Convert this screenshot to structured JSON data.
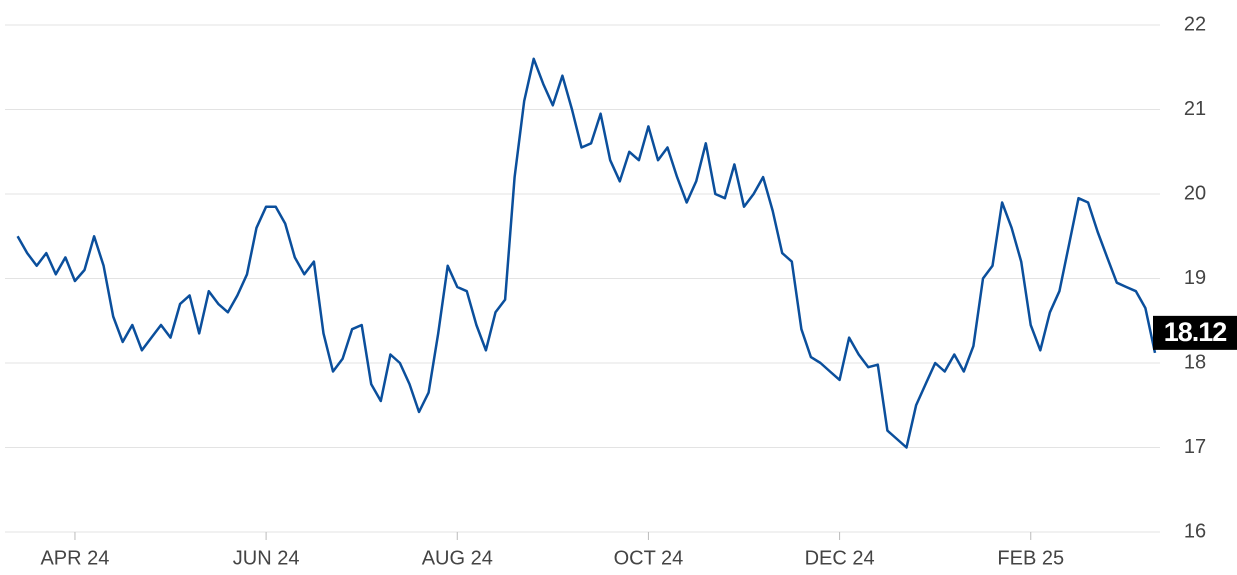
{
  "chart_data": {
    "type": "line",
    "categories": [
      null,
      null,
      null,
      null,
      null,
      null,
      "APR 24",
      null,
      null,
      null,
      null,
      null,
      null,
      null,
      null,
      null,
      null,
      null,
      null,
      null,
      null,
      null,
      null,
      null,
      null,
      null,
      "JUN 24",
      null,
      null,
      null,
      null,
      null,
      null,
      null,
      null,
      null,
      null,
      null,
      null,
      null,
      null,
      null,
      null,
      null,
      null,
      null,
      "AUG 24",
      null,
      null,
      null,
      null,
      null,
      null,
      null,
      null,
      null,
      null,
      null,
      null,
      null,
      null,
      null,
      null,
      null,
      null,
      null,
      "OCT 24",
      null,
      null,
      null,
      null,
      null,
      null,
      null,
      null,
      null,
      null,
      null,
      null,
      null,
      null,
      null,
      null,
      null,
      null,
      null,
      "DEC 24",
      null,
      null,
      null,
      null,
      null,
      null,
      null,
      null,
      null,
      null,
      null,
      null,
      null,
      null,
      null,
      null,
      null,
      null,
      null,
      "FEB 25",
      null,
      null,
      null,
      null,
      null,
      null,
      null,
      null,
      null,
      null,
      null,
      null,
      null
    ],
    "series": [
      {
        "color": "#0b4f9c",
        "values": [
          19.5,
          19.3,
          19.15,
          19.3,
          19.05,
          19.25,
          18.97,
          19.1,
          19.5,
          19.15,
          18.55,
          18.25,
          18.45,
          18.15,
          18.3,
          18.45,
          18.3,
          18.7,
          18.8,
          18.35,
          18.85,
          18.7,
          18.6,
          18.8,
          19.05,
          19.6,
          19.85,
          19.85,
          19.65,
          19.25,
          19.05,
          19.2,
          18.35,
          17.9,
          18.05,
          18.4,
          18.45,
          17.75,
          17.55,
          18.1,
          18.0,
          17.75,
          17.42,
          17.65,
          18.35,
          19.15,
          18.9,
          18.85,
          18.45,
          18.15,
          18.6,
          18.75,
          20.2,
          21.1,
          21.6,
          21.3,
          21.05,
          21.4,
          21.0,
          20.55,
          20.6,
          20.95,
          20.4,
          20.15,
          20.5,
          20.4,
          20.8,
          20.4,
          20.55,
          20.2,
          19.9,
          20.15,
          20.6,
          20.0,
          19.95,
          20.35,
          19.85,
          20.0,
          20.2,
          19.8,
          19.3,
          19.2,
          18.4,
          18.07,
          18.0,
          17.9,
          17.8,
          18.3,
          18.1,
          17.95,
          17.98,
          17.2,
          17.1,
          17.0,
          17.5,
          17.75,
          18.0,
          17.9,
          18.1,
          17.9,
          18.2,
          19.0,
          19.15,
          19.9,
          19.6,
          19.2,
          18.45,
          18.15,
          18.6,
          18.85,
          19.4,
          19.95,
          19.9,
          19.55,
          19.25,
          18.95,
          18.9,
          18.85,
          18.65,
          18.12
        ]
      }
    ],
    "last_value": 18.12,
    "ylim": [
      16,
      22
    ],
    "yticks": [
      16,
      17,
      18,
      19,
      20,
      21,
      22
    ],
    "grid": true
  }
}
